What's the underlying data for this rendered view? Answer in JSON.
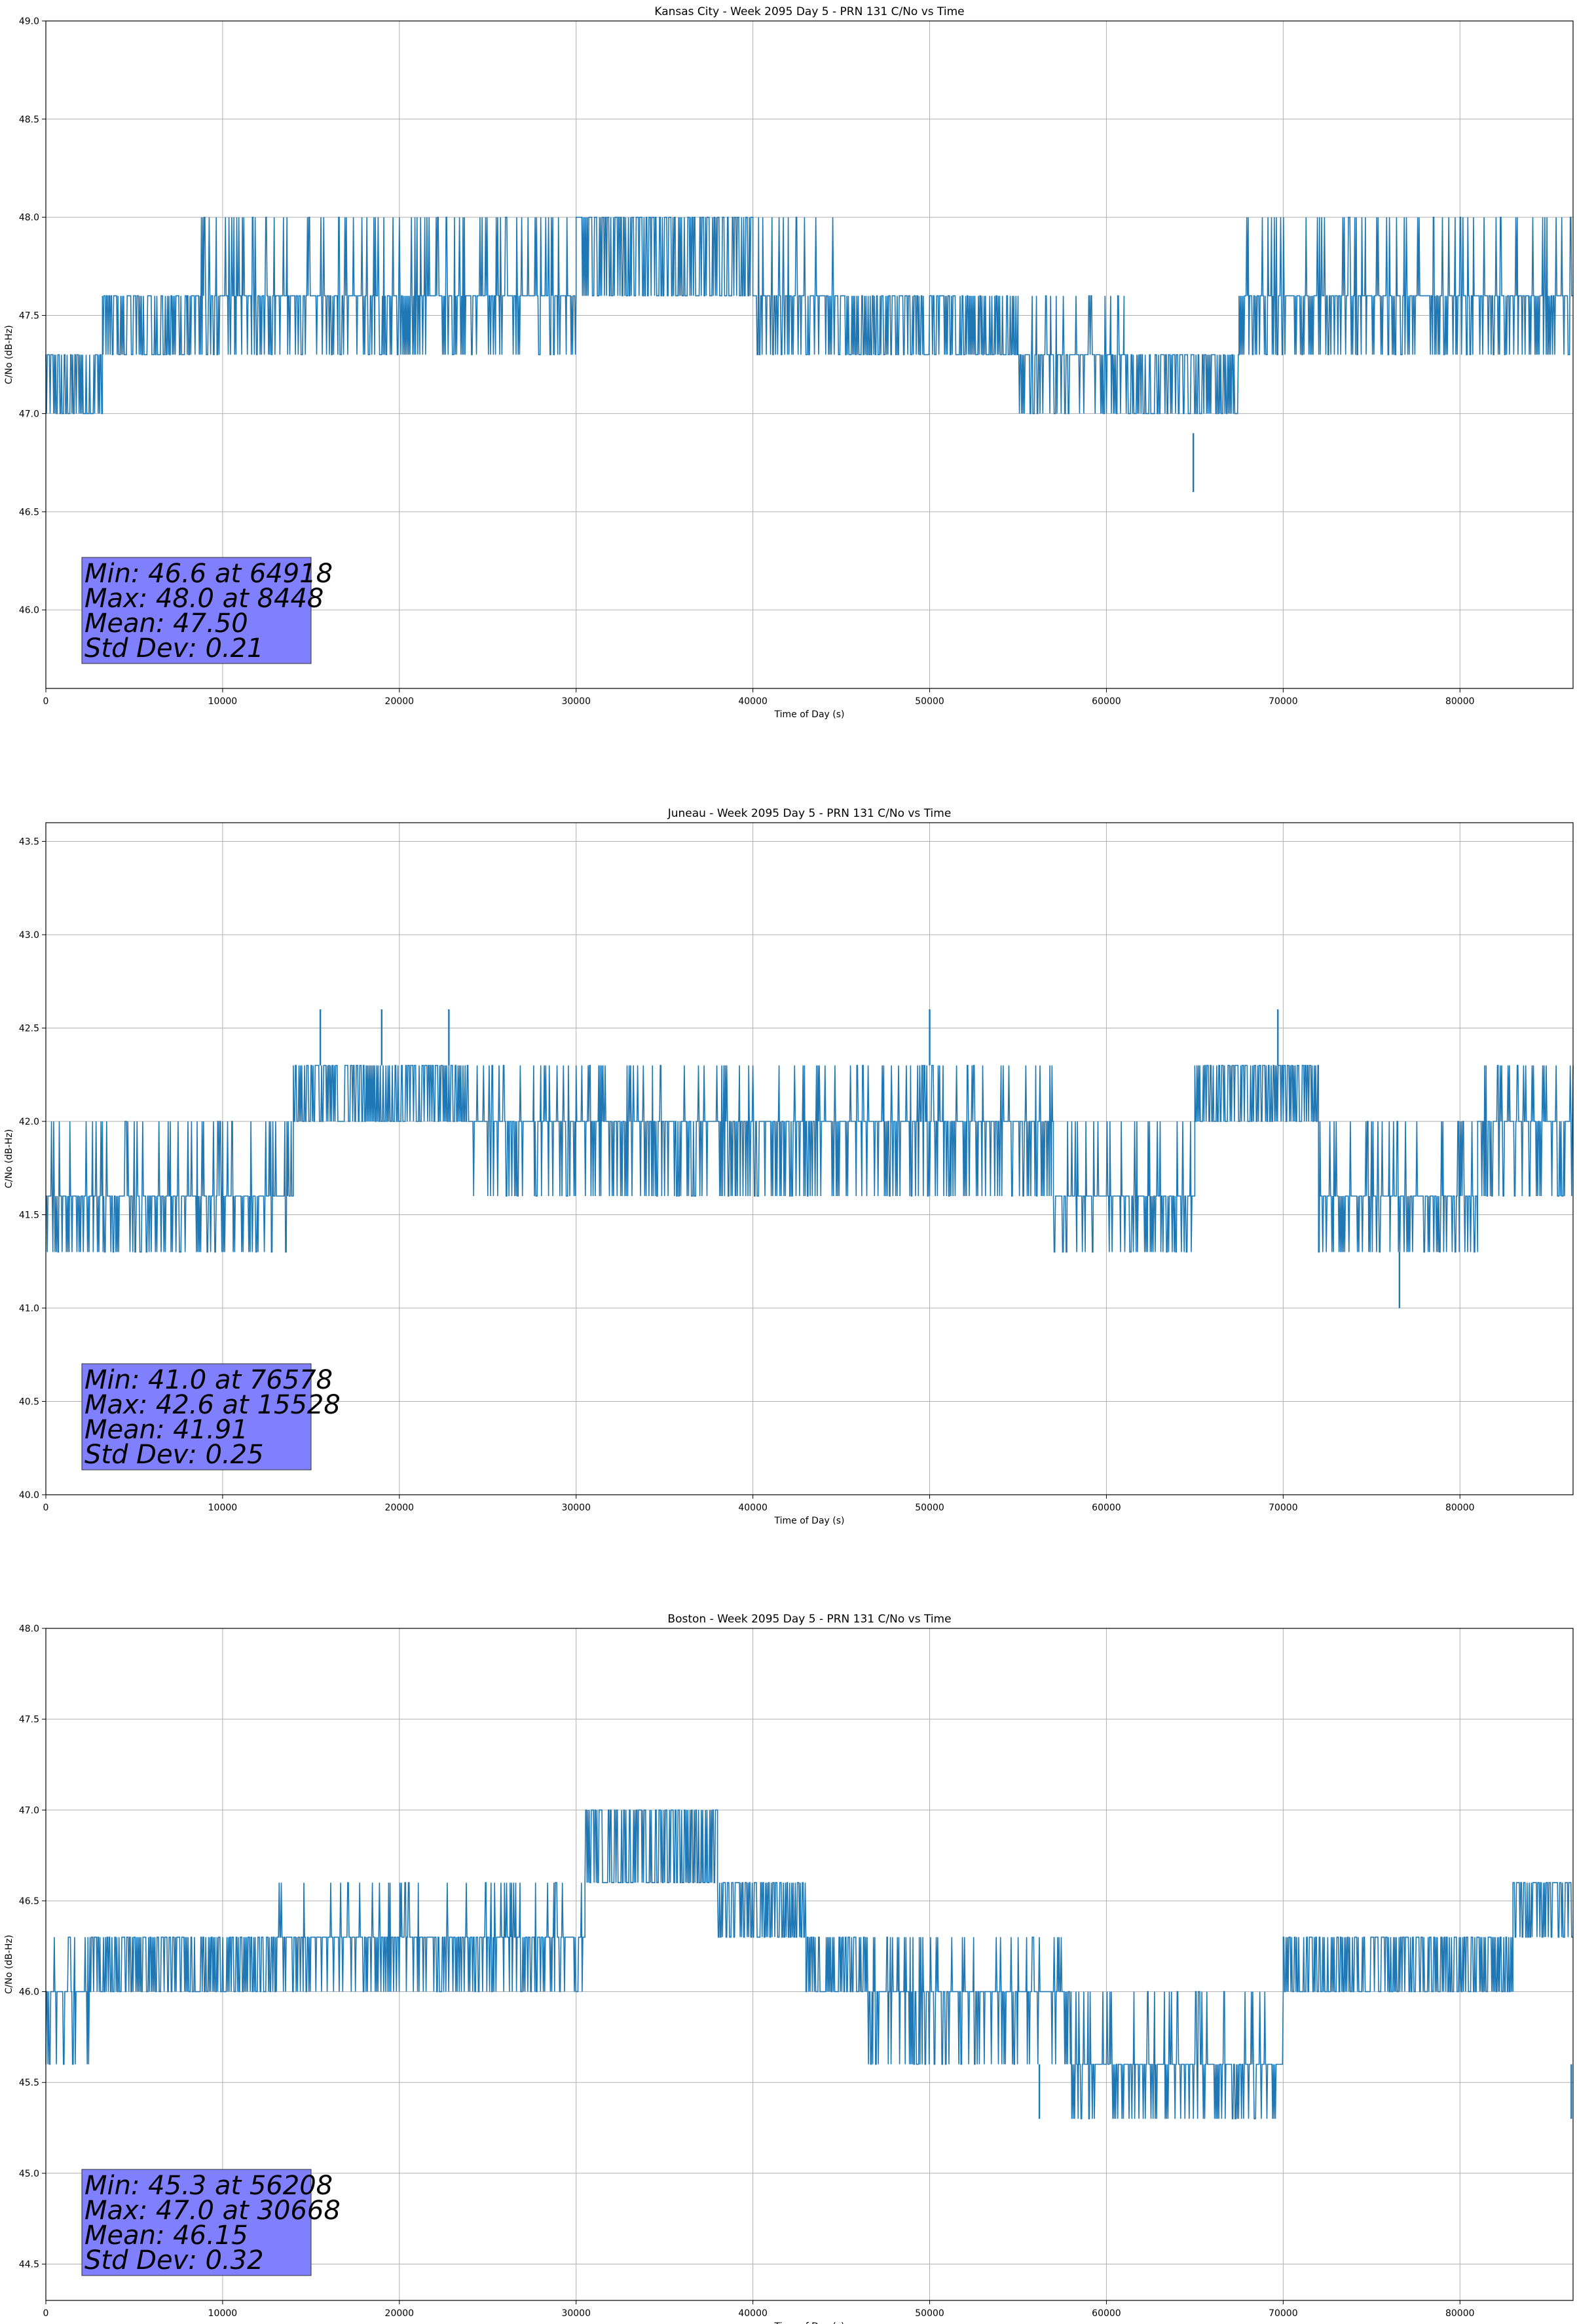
{
  "chart_data": [
    {
      "type": "line",
      "title": "Kansas City - Week 2095 Day 5 - PRN 131 C/No vs Time",
      "xlabel": "Time of Day (s)",
      "ylabel": "C/No (dB-Hz)",
      "xlim": [
        0,
        86400
      ],
      "ylim": [
        45.6,
        49.0
      ],
      "x_ticks": [
        0,
        10000,
        20000,
        30000,
        40000,
        50000,
        60000,
        70000,
        80000
      ],
      "x_tick_labels": [
        "0",
        "10000",
        "20000",
        "30000",
        "40000",
        "50000",
        "60000",
        "70000",
        "80000"
      ],
      "y_ticks": [
        46.0,
        46.5,
        47.0,
        47.5,
        48.0,
        48.5,
        49.0
      ],
      "y_tick_labels": [
        "46.0",
        "46.5",
        "47.0",
        "47.5",
        "48.0",
        "48.5",
        "49.0"
      ],
      "grid": true,
      "line_color": "#1f77b4",
      "stats_box_color": "#8080ff",
      "stats": [
        "Min: 46.6 at 64918",
        "Max: 48.0 at 8448",
        "Mean: 47.50",
        "Std Dev: 0.21"
      ],
      "segments": [
        {
          "start": 0,
          "end": 3200,
          "levels": [
            47.0,
            47.3
          ]
        },
        {
          "start": 3200,
          "end": 8000,
          "levels": [
            47.3,
            47.6
          ]
        },
        {
          "start": 8000,
          "end": 30000,
          "levels": [
            47.3,
            47.6,
            48.0
          ]
        },
        {
          "start": 30000,
          "end": 40000,
          "levels": [
            47.6,
            48.0
          ]
        },
        {
          "start": 40000,
          "end": 45000,
          "levels": [
            47.3,
            47.6,
            48.0
          ]
        },
        {
          "start": 45000,
          "end": 55000,
          "levels": [
            47.3,
            47.6
          ]
        },
        {
          "start": 55000,
          "end": 61000,
          "levels": [
            47.0,
            47.3,
            47.6
          ]
        },
        {
          "start": 61000,
          "end": 67500,
          "levels": [
            47.0,
            47.3
          ]
        },
        {
          "start": 67500,
          "end": 86400,
          "levels": [
            47.3,
            47.6,
            48.0
          ]
        }
      ],
      "spikes": [
        {
          "x": 64918,
          "y": 46.6
        }
      ]
    },
    {
      "type": "line",
      "title": "Juneau - Week 2095 Day 5 - PRN 131 C/No vs Time",
      "xlabel": "Time of Day (s)",
      "ylabel": "C/No (dB-Hz)",
      "xlim": [
        0,
        86400
      ],
      "ylim": [
        40.0,
        43.6
      ],
      "x_ticks": [
        0,
        10000,
        20000,
        30000,
        40000,
        50000,
        60000,
        70000,
        80000
      ],
      "x_tick_labels": [
        "0",
        "10000",
        "20000",
        "30000",
        "40000",
        "50000",
        "60000",
        "70000",
        "80000"
      ],
      "y_ticks": [
        40.0,
        40.5,
        41.0,
        41.5,
        42.0,
        42.5,
        43.0,
        43.5
      ],
      "y_tick_labels": [
        "40.0",
        "40.5",
        "41.0",
        "41.5",
        "42.0",
        "42.5",
        "43.0",
        "43.5"
      ],
      "grid": true,
      "line_color": "#1f77b4",
      "stats_box_color": "#8080ff",
      "stats": [
        "Min: 41.0 at 76578",
        "Max: 42.6 at 15528",
        "Mean: 41.91",
        "Std Dev: 0.25"
      ],
      "segments": [
        {
          "start": 0,
          "end": 14000,
          "levels": [
            41.3,
            41.6,
            42.0
          ]
        },
        {
          "start": 14000,
          "end": 24000,
          "levels": [
            42.0,
            42.3
          ]
        },
        {
          "start": 24000,
          "end": 39000,
          "levels": [
            41.6,
            42.0,
            42.3
          ]
        },
        {
          "start": 39000,
          "end": 57000,
          "levels": [
            41.6,
            42.0,
            42.3
          ]
        },
        {
          "start": 57000,
          "end": 65000,
          "levels": [
            41.3,
            41.6,
            42.0
          ]
        },
        {
          "start": 65000,
          "end": 72000,
          "levels": [
            42.0,
            42.3
          ]
        },
        {
          "start": 72000,
          "end": 81000,
          "levels": [
            41.3,
            41.6,
            42.0
          ]
        },
        {
          "start": 81000,
          "end": 86400,
          "levels": [
            41.6,
            42.0,
            42.3
          ]
        }
      ],
      "spikes": [
        {
          "x": 15528,
          "y": 42.6
        },
        {
          "x": 19000,
          "y": 42.6
        },
        {
          "x": 22800,
          "y": 42.6
        },
        {
          "x": 50000,
          "y": 42.6
        },
        {
          "x": 69700,
          "y": 42.6
        },
        {
          "x": 76578,
          "y": 41.0
        }
      ]
    },
    {
      "type": "line",
      "title": "Boston - Week 2095 Day 5 - PRN 131 C/No vs Time",
      "xlabel": "Time of Day (s)",
      "ylabel": "C/No (dB-Hz)",
      "xlim": [
        0,
        86400
      ],
      "ylim": [
        44.3,
        48.0
      ],
      "x_ticks": [
        0,
        10000,
        20000,
        30000,
        40000,
        50000,
        60000,
        70000,
        80000
      ],
      "x_tick_labels": [
        "0",
        "10000",
        "20000",
        "30000",
        "40000",
        "50000",
        "60000",
        "70000",
        "80000"
      ],
      "y_ticks": [
        44.5,
        45.0,
        45.5,
        46.0,
        46.5,
        47.0,
        47.5,
        48.0
      ],
      "y_tick_labels": [
        "44.5",
        "45.0",
        "45.5",
        "46.0",
        "46.5",
        "47.0",
        "47.5",
        "48.0"
      ],
      "grid": true,
      "line_color": "#1f77b4",
      "stats_box_color": "#8080ff",
      "stats": [
        "Min: 45.3 at 56208",
        "Max: 47.0 at 30668",
        "Mean: 46.15",
        "Std Dev: 0.32"
      ],
      "segments": [
        {
          "start": 0,
          "end": 2500,
          "levels": [
            45.6,
            46.0,
            46.3
          ]
        },
        {
          "start": 2500,
          "end": 13000,
          "levels": [
            46.0,
            46.3
          ]
        },
        {
          "start": 13000,
          "end": 30500,
          "levels": [
            46.0,
            46.3,
            46.6
          ]
        },
        {
          "start": 30500,
          "end": 38000,
          "levels": [
            46.6,
            47.0
          ]
        },
        {
          "start": 38000,
          "end": 43000,
          "levels": [
            46.3,
            46.6
          ]
        },
        {
          "start": 43000,
          "end": 46500,
          "levels": [
            46.0,
            46.3
          ]
        },
        {
          "start": 46500,
          "end": 58000,
          "levels": [
            45.6,
            46.0,
            46.3
          ]
        },
        {
          "start": 58000,
          "end": 70000,
          "levels": [
            45.3,
            45.6,
            46.0
          ]
        },
        {
          "start": 70000,
          "end": 83000,
          "levels": [
            46.0,
            46.3
          ]
        },
        {
          "start": 83000,
          "end": 86400,
          "levels": [
            46.3,
            46.6
          ]
        }
      ],
      "spikes": [
        {
          "x": 56208,
          "y": 45.3
        },
        {
          "x": 86300,
          "y": 45.3
        }
      ]
    }
  ]
}
